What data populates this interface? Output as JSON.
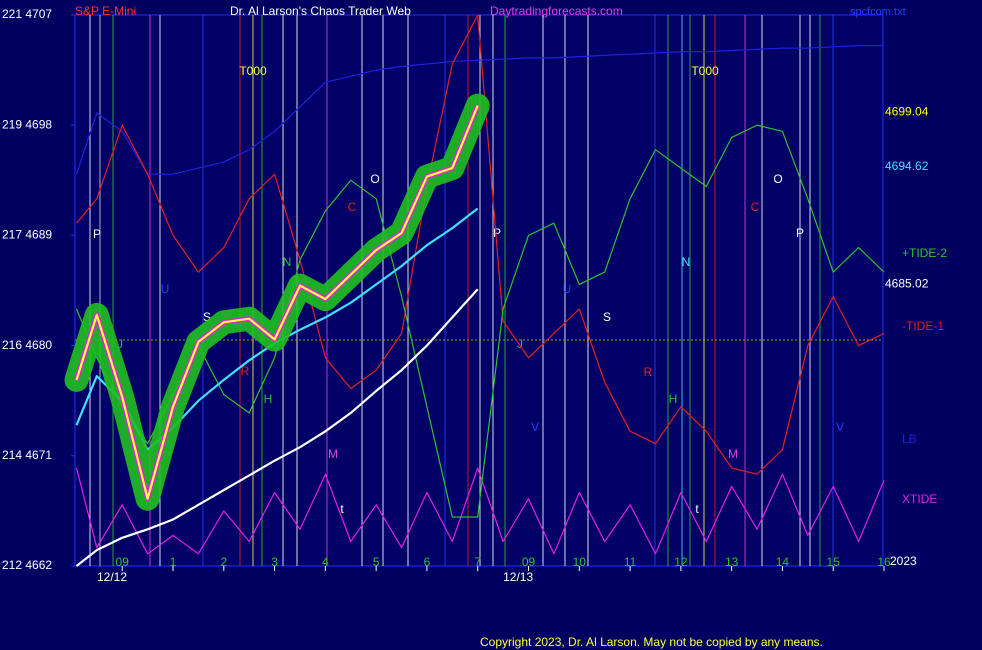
{
  "chart_data": {
    "type": "line",
    "title": "Dr. Al Larson's Chaos Trader Web",
    "instrument": "S&P E-Mini",
    "website": "Daytradingforecasts.com",
    "file": "spcfcom.txt",
    "copyright": "Copyright 2023, Dr. Al Larson. May not be copied by any means.",
    "year": "2023",
    "date_labels": [
      "12/12",
      "12/13"
    ],
    "x": [
      -0.9,
      -0.5,
      0,
      0.5,
      1,
      1.5,
      2,
      2.5,
      3,
      3.5,
      4,
      4.5,
      5,
      5.5,
      6,
      6.5,
      7,
      7.5,
      8,
      8.5,
      9,
      9.5,
      10,
      10.5,
      11,
      11.5,
      12,
      12.5,
      13,
      13.5,
      14,
      14.5,
      15
    ],
    "xlim": [
      -0.93,
      14.98
    ],
    "xticks": [
      {
        "value": 0,
        "label": "09"
      },
      1,
      2,
      3,
      4,
      5,
      6,
      7,
      {
        "value": 8,
        "label": "09"
      },
      {
        "value": 9,
        "label": "10"
      },
      {
        "value": 10,
        "label": "11"
      },
      {
        "value": 11,
        "label": "12"
      },
      {
        "value": 12,
        "label": "13"
      },
      {
        "value": 13,
        "label": "14"
      },
      {
        "value": 14,
        "label": "15"
      },
      {
        "value": 15,
        "label": "16"
      }
    ],
    "ylim": [
      4662,
      4707
    ],
    "yticks": [
      {
        "value": 4662,
        "label": "212  4662"
      },
      {
        "value": 4671,
        "label": "214  4671"
      },
      {
        "value": 4680,
        "label": "216  4680"
      },
      {
        "value": 4689,
        "label": "217  4689"
      },
      {
        "value": 4698,
        "label": "219  4698"
      },
      {
        "value": 4707,
        "label": "221  4707"
      }
    ],
    "price_markers": [
      {
        "value": 4699.04,
        "color": "#ffff00"
      },
      {
        "value": 4694.62,
        "color": "#40e0ff"
      },
      {
        "value": 4685.02,
        "color": "#ffffff"
      }
    ],
    "annotations": [
      "T000",
      "T000",
      "O",
      "C",
      "P",
      "N",
      "S",
      "R",
      "H",
      "M",
      "J",
      "U",
      "V",
      "O",
      "C",
      "P",
      "N",
      "S",
      "R",
      "H",
      "M",
      "J",
      "U",
      "V",
      "P",
      "t",
      "t"
    ],
    "series": [
      {
        "name": "LB",
        "color": "#2020e0",
        "values": [
          4694,
          4699,
          4697.5,
          4694,
          4694,
          4694.5,
          4695,
          4696,
          4697.5,
          4699.5,
          4701.5,
          4702,
          4702.5,
          4702.8,
          4703,
          4703.2,
          4703.3,
          4703.4,
          4703.5,
          4703.5,
          4703.6,
          4703.7,
          4703.8,
          4703.9,
          4704,
          4704,
          4704.1,
          4704.2,
          4704.3,
          4704.3,
          4704.4,
          4704.5,
          4704.5
        ]
      },
      {
        "name": "XTIDE",
        "color": "#e020e0",
        "values": [
          4670,
          4663.5,
          4667,
          4663,
          4664.5,
          4663,
          4666.5,
          4664,
          4668,
          4665,
          4669.5,
          4664,
          4667,
          4663.5,
          4668,
          4664,
          4670,
          4664,
          4667.5,
          4663,
          4668,
          4664,
          4667,
          4663,
          4668,
          4664,
          4668.5,
          4665,
          4669.5,
          4664.5,
          4668.5,
          4664,
          4669
        ]
      },
      {
        "name": "-TIDE-1",
        "color": "#e02020",
        "values": [
          4690,
          4692,
          4698,
          4694,
          4689,
          4686,
          4688,
          4692,
          4694,
          4687,
          4679,
          4676.5,
          4678,
          4681,
          4693,
          4703,
          4707,
          4682,
          4679,
          4681,
          4683,
          4677,
          4673,
          4672,
          4675,
          4673,
          4670,
          4669.5,
          4671.5,
          4680,
          4684,
          4680,
          4681
        ]
      },
      {
        "name": "+TIDE-2",
        "color": "#30c030",
        "values": [
          4683,
          4679,
          4675,
          4672,
          4676,
          4680,
          4676,
          4674.5,
          4679,
          4687,
          4691,
          4693.5,
          4692,
          4684,
          4675,
          4666,
          4666,
          4683,
          4689,
          4690,
          4685,
          4686,
          4692,
          4696,
          4694.5,
          4693,
          4697,
          4698,
          4697.5,
          4692,
          4686,
          4688,
          4686
        ]
      },
      {
        "color": "#ffffff",
        "values": [
          4662,
          4663.3,
          4664.3,
          4665,
          4665.8,
          4667,
          4668.2,
          4669.4,
          4670.6,
          4671.7,
          4673,
          4674.5,
          4676.3,
          4678,
          4680,
          4682.3,
          4684.6,
          null,
          null,
          null,
          null,
          null,
          null,
          null,
          null,
          null,
          null,
          null,
          null,
          null,
          null,
          null,
          null
        ]
      },
      {
        "color": "#40e0ff",
        "values": [
          4673.5,
          4677.5,
          4675.5,
          4671.5,
          4673.3,
          4675.5,
          4677.2,
          4678.8,
          4680.2,
          4681.3,
          4682.3,
          4683.5,
          4685,
          4686.5,
          4688.2,
          4689.6,
          4691.2,
          null,
          null,
          null,
          null,
          null,
          null,
          null,
          null,
          null,
          null,
          null,
          null,
          null,
          null,
          null,
          null
        ]
      },
      {
        "color": "#ffff40",
        "values": [
          4677.2,
          4682.5,
          4675.8,
          4667.5,
          4675,
          4680.3,
          4681.9,
          4682.2,
          4680.5,
          4684.9,
          4683.8,
          4685.8,
          4687.8,
          4689.2,
          4693.8,
          4694.5,
          4699.6,
          null,
          null,
          null,
          null,
          null,
          null,
          null,
          null,
          null,
          null,
          null,
          null,
          null,
          null,
          null,
          null
        ]
      }
    ]
  }
}
